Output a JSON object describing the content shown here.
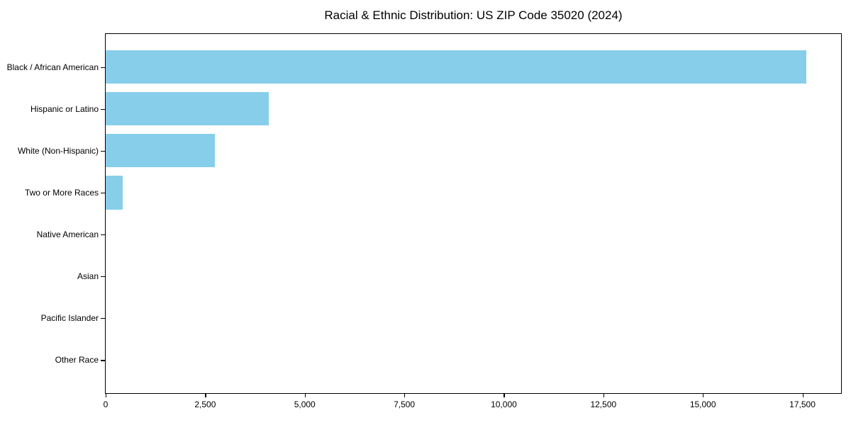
{
  "title": "Racial & Ethnic Distribution: US ZIP Code 35020 (2024)",
  "chart_data": {
    "type": "bar",
    "orientation": "horizontal",
    "title": "Racial & Ethnic Distribution: US ZIP Code 35020 (2024)",
    "xlabel": "",
    "ylabel": "",
    "categories": [
      "Black / African American",
      "Hispanic or Latino",
      "White (Non-Hispanic)",
      "Two or More Races",
      "Native American",
      "Asian",
      "Pacific Islander",
      "Other Race"
    ],
    "values": [
      17590,
      4100,
      2740,
      430,
      0,
      0,
      0,
      0
    ],
    "xlim": [
      0,
      18470
    ],
    "x_ticks": [
      0,
      2500,
      5000,
      7500,
      10000,
      12500,
      15000,
      17500
    ],
    "x_tick_labels": [
      "0",
      "2,500",
      "5,000",
      "7,500",
      "10,000",
      "12,500",
      "15,000",
      "17,500"
    ],
    "bar_color": "#87CEEB",
    "bar_height_fraction": 0.8,
    "grid": false,
    "legend": false,
    "spines": "full-box",
    "background": "#ffffff"
  }
}
